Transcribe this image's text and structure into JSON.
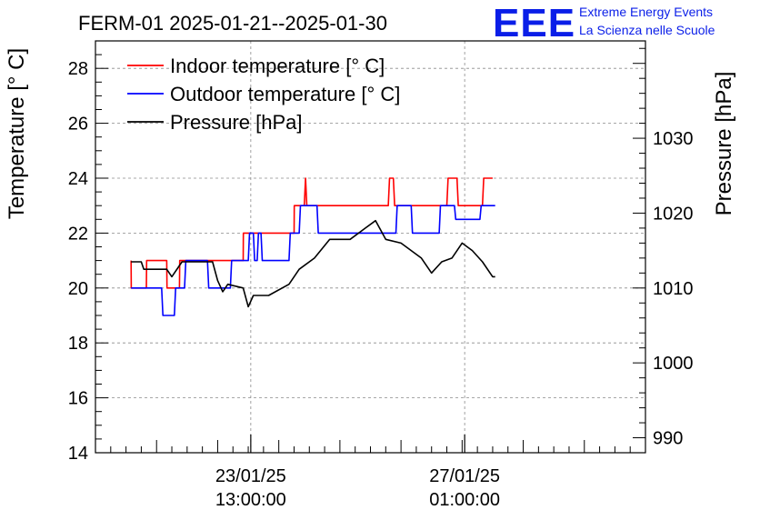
{
  "chart_data": {
    "type": "line",
    "title": "FERM-01 2025-01-21--2025-01-30",
    "ylabel": "Temperature [° C]",
    "y2label": "Pressure [hPa]",
    "ylim": [
      14,
      29
    ],
    "y2lim": [
      988,
      1043
    ],
    "x_start": "2025-01-21 00:00",
    "x_end": "2025-01-30 00:00",
    "yticks": [
      "14",
      "16",
      "18",
      "20",
      "22",
      "24",
      "26",
      "28"
    ],
    "y2ticks": [
      "990",
      "1000",
      "1010",
      "1020",
      "1030"
    ],
    "xticks": [
      {
        "x": "2025-01-23 13:00",
        "date": "23/01/25",
        "time": "13:00:00"
      },
      {
        "x": "2025-01-27 01:00",
        "date": "27/01/25",
        "time": "01:00:00"
      }
    ],
    "grid": true,
    "legend_position": "top-left",
    "series": [
      {
        "name": "Indoor temperature [° C]",
        "color": "#ff0000",
        "axis": "left",
        "points": [
          [
            "2025-01-21 14:00",
            21
          ],
          [
            "2025-01-21 14:05",
            20
          ],
          [
            "2025-01-21 20:00",
            20
          ],
          [
            "2025-01-21 20:05",
            21
          ],
          [
            "2025-01-22 04:00",
            21
          ],
          [
            "2025-01-22 04:05",
            20
          ],
          [
            "2025-01-22 09:00",
            20
          ],
          [
            "2025-01-22 09:05",
            21
          ],
          [
            "2025-01-23 10:00",
            21
          ],
          [
            "2025-01-23 10:05",
            22
          ],
          [
            "2025-01-24 06:00",
            22
          ],
          [
            "2025-01-24 06:05",
            23
          ],
          [
            "2025-01-24 10:00",
            23
          ],
          [
            "2025-01-24 10:30",
            24
          ],
          [
            "2025-01-24 11:00",
            23
          ],
          [
            "2025-01-25 19:00",
            23
          ],
          [
            "2025-01-25 19:30",
            24
          ],
          [
            "2025-01-25 21:00",
            24
          ],
          [
            "2025-01-25 21:30",
            23
          ],
          [
            "2025-01-26 18:00",
            23
          ],
          [
            "2025-01-26 18:30",
            24
          ],
          [
            "2025-01-26 22:00",
            24
          ],
          [
            "2025-01-26 22:30",
            23
          ],
          [
            "2025-01-27 08:00",
            23
          ],
          [
            "2025-01-27 08:30",
            24
          ],
          [
            "2025-01-27 12:00",
            24
          ]
        ]
      },
      {
        "name": "Outdoor temperature [° C]",
        "color": "#0000ff",
        "axis": "left",
        "points": [
          [
            "2025-01-21 14:00",
            20
          ],
          [
            "2025-01-22 02:00",
            20
          ],
          [
            "2025-01-22 02:30",
            19
          ],
          [
            "2025-01-22 07:00",
            19
          ],
          [
            "2025-01-22 07:30",
            20
          ],
          [
            "2025-01-22 11:00",
            20
          ],
          [
            "2025-01-22 11:30",
            21
          ],
          [
            "2025-01-22 20:00",
            21
          ],
          [
            "2025-01-22 20:30",
            20
          ],
          [
            "2025-01-23 05:00",
            20
          ],
          [
            "2025-01-23 05:30",
            21
          ],
          [
            "2025-01-23 12:00",
            21
          ],
          [
            "2025-01-23 12:30",
            22
          ],
          [
            "2025-01-23 14:00",
            22
          ],
          [
            "2025-01-23 14:30",
            21
          ],
          [
            "2025-01-23 15:30",
            21
          ],
          [
            "2025-01-23 16:00",
            22
          ],
          [
            "2025-01-23 17:00",
            22
          ],
          [
            "2025-01-23 17:30",
            21
          ],
          [
            "2025-01-24 04:00",
            21
          ],
          [
            "2025-01-24 04:30",
            22
          ],
          [
            "2025-01-24 08:00",
            22
          ],
          [
            "2025-01-24 08:30",
            23
          ],
          [
            "2025-01-24 15:00",
            23
          ],
          [
            "2025-01-24 15:30",
            22
          ],
          [
            "2025-01-25 22:00",
            22
          ],
          [
            "2025-01-25 22:30",
            23
          ],
          [
            "2025-01-26 04:00",
            23
          ],
          [
            "2025-01-26 04:30",
            22
          ],
          [
            "2025-01-26 15:00",
            22
          ],
          [
            "2025-01-26 15:30",
            23
          ],
          [
            "2025-01-26 21:00",
            23
          ],
          [
            "2025-01-26 21:30",
            22.5
          ],
          [
            "2025-01-27 07:00",
            22.5
          ],
          [
            "2025-01-27 07:30",
            23
          ],
          [
            "2025-01-27 13:00",
            23
          ]
        ]
      },
      {
        "name": "Pressure [hPa]",
        "color": "#000000",
        "axis": "right",
        "points": [
          [
            "2025-01-21 14:00",
            1013.5
          ],
          [
            "2025-01-21 18:00",
            1013.5
          ],
          [
            "2025-01-21 19:00",
            1012.5
          ],
          [
            "2025-01-22 04:00",
            1012.5
          ],
          [
            "2025-01-22 06:00",
            1011.5
          ],
          [
            "2025-01-22 10:00",
            1013.5
          ],
          [
            "2025-01-22 22:00",
            1013.5
          ],
          [
            "2025-01-23 00:00",
            1011
          ],
          [
            "2025-01-23 02:00",
            1009.5
          ],
          [
            "2025-01-23 04:00",
            1010.5
          ],
          [
            "2025-01-23 10:00",
            1010
          ],
          [
            "2025-01-23 12:00",
            1007.5
          ],
          [
            "2025-01-23 14:00",
            1009
          ],
          [
            "2025-01-23 20:00",
            1009
          ],
          [
            "2025-01-24 04:00",
            1010.5
          ],
          [
            "2025-01-24 08:00",
            1012.5
          ],
          [
            "2025-01-24 14:00",
            1014
          ],
          [
            "2025-01-24 20:00",
            1016.5
          ],
          [
            "2025-01-25 04:00",
            1016.5
          ],
          [
            "2025-01-25 10:00",
            1018
          ],
          [
            "2025-01-25 14:00",
            1019
          ],
          [
            "2025-01-25 18:00",
            1016.5
          ],
          [
            "2025-01-26 00:00",
            1016
          ],
          [
            "2025-01-26 04:00",
            1015
          ],
          [
            "2025-01-26 08:00",
            1014
          ],
          [
            "2025-01-26 12:00",
            1012
          ],
          [
            "2025-01-26 16:00",
            1013.5
          ],
          [
            "2025-01-26 20:00",
            1014
          ],
          [
            "2025-01-27 00:00",
            1016
          ],
          [
            "2025-01-27 04:00",
            1015
          ],
          [
            "2025-01-27 08:00",
            1013.5
          ],
          [
            "2025-01-27 12:00",
            1011.5
          ],
          [
            "2025-01-27 13:00",
            1011.5
          ]
        ]
      }
    ]
  },
  "logo": {
    "mark": "EEE",
    "line1": "Extreme Energy Events",
    "line2": "La Scienza nelle Scuole"
  }
}
